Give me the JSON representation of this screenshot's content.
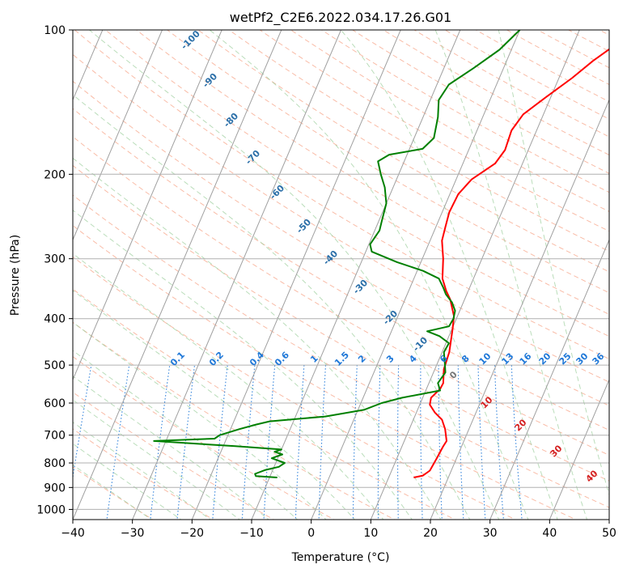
{
  "chart_data": {
    "type": "line",
    "title": "wetPf2_C2E6.2022.034.17.26.G01",
    "xlabel": "Temperature (°C)",
    "ylabel": "Pressure (hPa)",
    "xlim": [
      -40,
      50
    ],
    "ylim": [
      1050,
      100
    ],
    "y_scale": "log",
    "grid": true,
    "x_ticks": [
      "−40",
      "−30",
      "−20",
      "−10",
      "0",
      "10",
      "20",
      "30",
      "40",
      "50"
    ],
    "y_ticks": [
      {
        "p": 100,
        "label": "100"
      },
      {
        "p": 200,
        "label": "200"
      },
      {
        "p": 300,
        "label": "300"
      },
      {
        "p": 400,
        "label": "400"
      },
      {
        "p": 500,
        "label": "500"
      },
      {
        "p": 600,
        "label": "600"
      },
      {
        "p": 700,
        "label": "700"
      },
      {
        "p": 800,
        "label": "800"
      },
      {
        "p": 900,
        "label": "900"
      },
      {
        "p": 1000,
        "label": "1000"
      }
    ],
    "colors": {
      "temperature": "#ff0000",
      "dewpoint": "#008000",
      "isotherm": "#a0a0a0",
      "dry_adiabat": "#f7a58a",
      "moist_adiabat": "#9ccf9c",
      "mixing_ratio": "#1f78d8",
      "wetbulb_label": "#2b6fa8",
      "ma_label": "#d42020",
      "zero_label": "#777777"
    },
    "series": [
      {
        "key": "temperature",
        "points": [
          [
            14.2,
            858
          ],
          [
            15.6,
            850
          ],
          [
            16.4,
            830
          ],
          [
            16.7,
            780
          ],
          [
            16.9,
            740
          ],
          [
            17.1,
            720
          ],
          [
            16.0,
            680
          ],
          [
            14.8,
            650
          ],
          [
            13.1,
            628
          ],
          [
            11.7,
            605
          ],
          [
            11.4,
            585
          ],
          [
            12.3,
            560
          ],
          [
            12.4,
            545
          ],
          [
            11.5,
            510
          ],
          [
            11.2,
            470
          ],
          [
            10.1,
            420
          ],
          [
            9.4,
            395
          ],
          [
            7.6,
            365
          ],
          [
            6.3,
            350
          ],
          [
            4.8,
            330
          ],
          [
            3.5,
            300
          ],
          [
            2.0,
            275
          ],
          [
            1.6,
            258
          ],
          [
            1.2,
            240
          ],
          [
            1.4,
            220
          ],
          [
            2.6,
            205
          ],
          [
            5.4,
            190
          ],
          [
            6.1,
            178
          ],
          [
            5.8,
            162
          ],
          [
            6.6,
            150
          ],
          [
            9.2,
            138
          ],
          [
            12.2,
            126
          ],
          [
            14.5,
            116
          ],
          [
            16.6,
            109
          ],
          [
            17.7,
            104
          ],
          [
            18.1,
            100
          ]
        ]
      },
      {
        "key": "dewpoint",
        "points": [
          [
            -8.7,
            858
          ],
          [
            -12.4,
            852
          ],
          [
            -12.7,
            843
          ],
          [
            -11.2,
            827
          ],
          [
            -9.2,
            815
          ],
          [
            -8.5,
            800
          ],
          [
            -11.0,
            782
          ],
          [
            -9.5,
            768
          ],
          [
            -11.0,
            758
          ],
          [
            -10.0,
            750
          ],
          [
            -18.0,
            738
          ],
          [
            -32.0,
            720
          ],
          [
            -22.0,
            712
          ],
          [
            -21.4,
            700
          ],
          [
            -18.5,
            680
          ],
          [
            -16.0,
            665
          ],
          [
            -14.0,
            655
          ],
          [
            -5.0,
            640
          ],
          [
            1.0,
            620
          ],
          [
            3.5,
            600
          ],
          [
            6.5,
            585
          ],
          [
            12.4,
            565
          ],
          [
            11.5,
            545
          ],
          [
            12.0,
            518
          ],
          [
            11.4,
            500
          ],
          [
            10.3,
            470
          ],
          [
            10.5,
            450
          ],
          [
            8.4,
            435
          ],
          [
            6.0,
            425
          ],
          [
            9.3,
            415
          ],
          [
            9.5,
            400
          ],
          [
            9.2,
            385
          ],
          [
            8.1,
            370
          ],
          [
            6.5,
            356
          ],
          [
            5.6,
            345
          ],
          [
            4.2,
            330
          ],
          [
            1.0,
            318
          ],
          [
            -4.0,
            305
          ],
          [
            -9.0,
            290
          ],
          [
            -9.8,
            280
          ],
          [
            -9.2,
            262
          ],
          [
            -9.5,
            250
          ],
          [
            -10.0,
            230
          ],
          [
            -11.4,
            213
          ],
          [
            -13.0,
            200
          ],
          [
            -14.4,
            188
          ],
          [
            -13.0,
            182
          ],
          [
            -7.8,
            177
          ],
          [
            -6.7,
            168
          ],
          [
            -7.5,
            152
          ],
          [
            -8.6,
            140
          ],
          [
            -8.0,
            130
          ],
          [
            -5.0,
            120
          ],
          [
            -2.0,
            110
          ],
          [
            0.0,
            100
          ]
        ]
      }
    ],
    "wetbulb_labels": [
      "-100",
      "-90",
      "-80",
      "-70",
      "-60",
      "-50",
      "-40",
      "-30",
      "-20",
      "-10"
    ],
    "mixing_ratio_labels": [
      "0.1",
      "0.2",
      "0.4",
      "0.6",
      "1",
      "1.5",
      "2",
      "3",
      "4",
      "6",
      "8",
      "10",
      "13",
      "16",
      "20",
      "25",
      "30",
      "36"
    ],
    "moist_adiabat_labels": [
      "0",
      "10",
      "20",
      "30",
      "40"
    ]
  }
}
